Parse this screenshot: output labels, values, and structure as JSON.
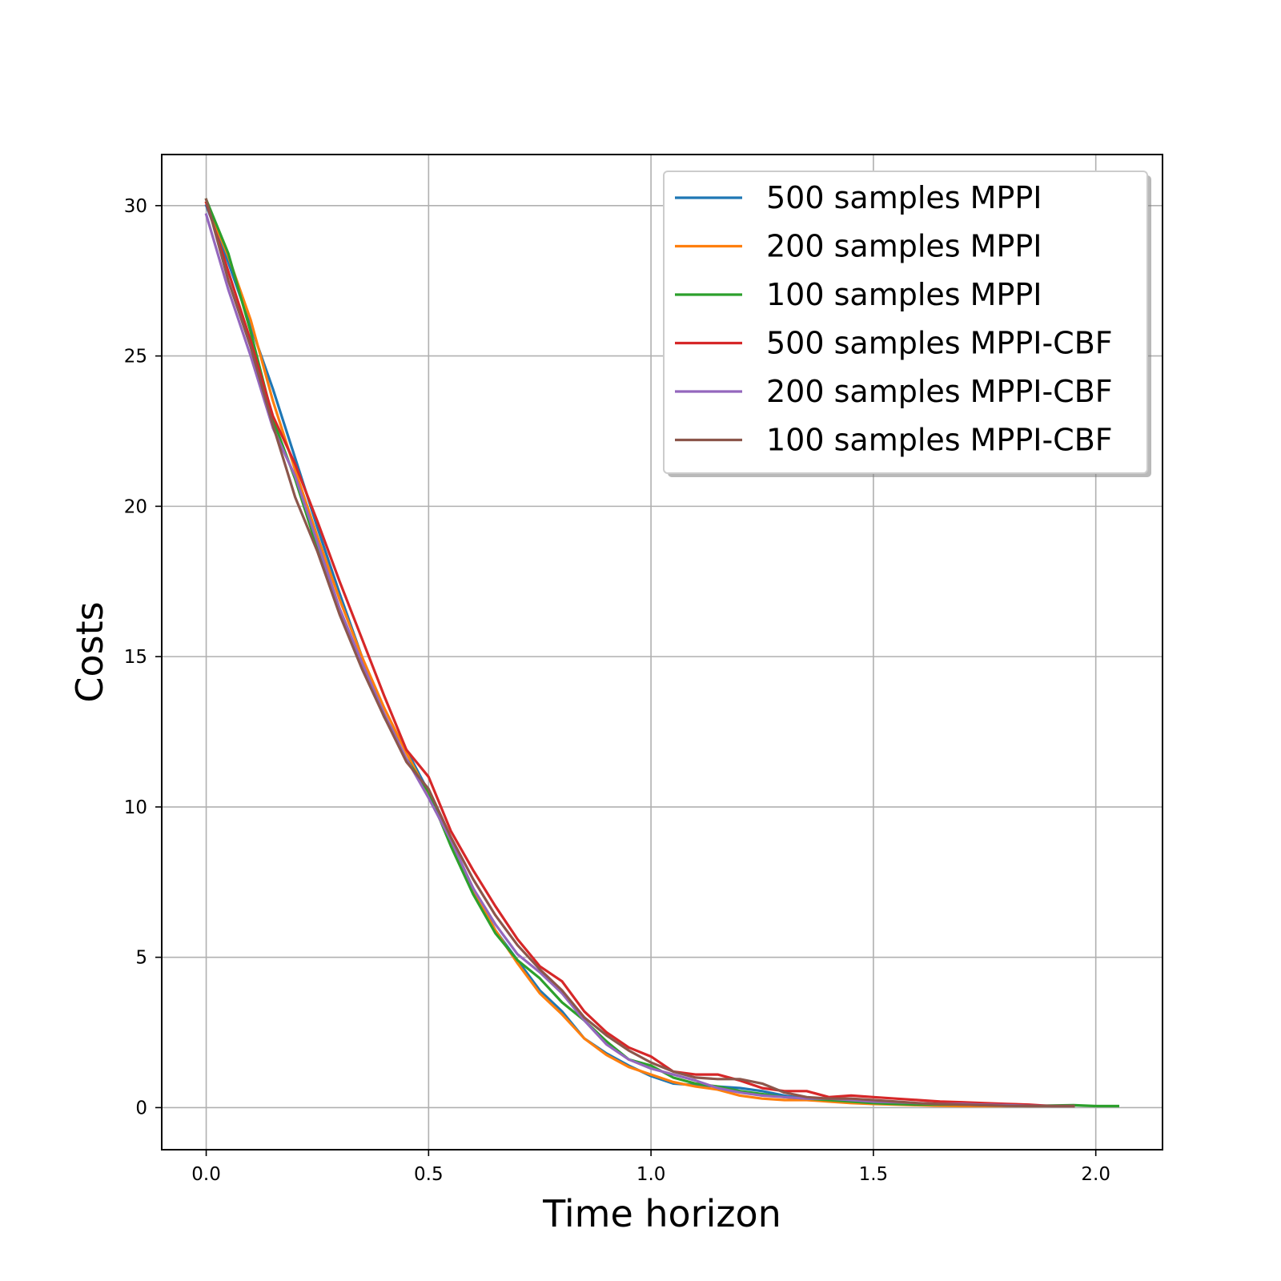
{
  "chart_data": {
    "type": "line",
    "title": "",
    "xlabel": "Time horizon",
    "ylabel": "Costs",
    "xlim": [
      -0.1,
      2.15
    ],
    "ylim": [
      -1.4,
      31.7
    ],
    "xticks": [
      0.0,
      0.5,
      1.0,
      1.5,
      2.0
    ],
    "xtick_labels": [
      "0.0",
      "0.5",
      "1.0",
      "1.5",
      "2.0"
    ],
    "yticks": [
      0,
      5,
      10,
      15,
      20,
      25,
      30
    ],
    "ytick_labels": [
      "0",
      "5",
      "10",
      "15",
      "20",
      "25",
      "30"
    ],
    "grid": true,
    "legend_position": "top-right",
    "series": [
      {
        "name": "500 samples MPPI",
        "color": "#1f77b4",
        "x": [
          0.0,
          0.05,
          0.1,
          0.15,
          0.2,
          0.25,
          0.3,
          0.35,
          0.4,
          0.45,
          0.5,
          0.55,
          0.6,
          0.65,
          0.7,
          0.75,
          0.8,
          0.85,
          0.9,
          0.95,
          1.0,
          1.05,
          1.1,
          1.15,
          1.2,
          1.25,
          1.3,
          1.35,
          1.4,
          1.45,
          1.5,
          1.55,
          1.6,
          1.65,
          1.7,
          1.75,
          1.8,
          1.85,
          1.9,
          1.95
        ],
        "y": [
          30.0,
          28.1,
          26.0,
          23.9,
          21.6,
          19.3,
          17.1,
          15.0,
          13.0,
          11.9,
          10.5,
          8.8,
          7.3,
          5.9,
          4.9,
          3.9,
          3.2,
          2.3,
          1.8,
          1.4,
          1.05,
          0.8,
          0.75,
          0.7,
          0.65,
          0.55,
          0.4,
          0.3,
          0.25,
          0.2,
          0.15,
          0.12,
          0.1,
          0.08,
          0.07,
          0.06,
          0.05,
          0.05,
          0.05,
          0.05
        ]
      },
      {
        "name": "200 samples MPPI",
        "color": "#ff7f0e",
        "x": [
          0.0,
          0.05,
          0.1,
          0.15,
          0.2,
          0.25,
          0.3,
          0.35,
          0.4,
          0.45,
          0.5,
          0.55,
          0.6,
          0.65,
          0.7,
          0.75,
          0.8,
          0.85,
          0.9,
          0.95,
          1.0,
          1.05,
          1.1,
          1.15,
          1.2,
          1.25,
          1.3,
          1.35,
          1.4,
          1.45,
          1.5,
          1.55,
          1.6,
          1.65,
          1.7,
          1.75,
          1.8,
          1.85,
          1.9,
          1.95
        ],
        "y": [
          30.1,
          28.3,
          26.2,
          23.5,
          21.2,
          19.0,
          16.9,
          15.0,
          13.3,
          11.8,
          10.4,
          8.8,
          7.2,
          5.9,
          4.8,
          3.8,
          3.1,
          2.3,
          1.75,
          1.35,
          1.1,
          0.85,
          0.7,
          0.6,
          0.4,
          0.3,
          0.25,
          0.25,
          0.2,
          0.15,
          0.12,
          0.1,
          0.08,
          0.06,
          0.05,
          0.05,
          0.05,
          0.05,
          0.05,
          0.05
        ]
      },
      {
        "name": "100 samples MPPI",
        "color": "#2ca02c",
        "x": [
          0.0,
          0.05,
          0.1,
          0.15,
          0.2,
          0.25,
          0.3,
          0.35,
          0.4,
          0.45,
          0.5,
          0.55,
          0.6,
          0.65,
          0.7,
          0.75,
          0.8,
          0.85,
          0.9,
          0.95,
          1.0,
          1.05,
          1.1,
          1.15,
          1.2,
          1.25,
          1.3,
          1.35,
          1.4,
          1.45,
          1.5,
          1.55,
          1.6,
          1.65,
          1.7,
          1.75,
          1.8,
          1.85,
          1.9,
          1.95,
          2.0,
          2.05
        ],
        "y": [
          30.2,
          28.4,
          25.8,
          22.9,
          20.9,
          18.6,
          16.5,
          14.7,
          13.0,
          11.6,
          10.5,
          8.7,
          7.1,
          5.8,
          4.9,
          4.3,
          3.5,
          2.9,
          2.2,
          1.6,
          1.4,
          1.0,
          0.8,
          0.7,
          0.55,
          0.45,
          0.35,
          0.3,
          0.25,
          0.2,
          0.15,
          0.12,
          0.1,
          0.1,
          0.1,
          0.08,
          0.07,
          0.06,
          0.07,
          0.08,
          0.05,
          0.05
        ]
      },
      {
        "name": "500 samples MPPI-CBF",
        "color": "#d62728",
        "x": [
          0.0,
          0.05,
          0.1,
          0.15,
          0.2,
          0.25,
          0.3,
          0.35,
          0.4,
          0.45,
          0.5,
          0.55,
          0.6,
          0.65,
          0.7,
          0.75,
          0.8,
          0.85,
          0.9,
          0.95,
          1.0,
          1.05,
          1.1,
          1.15,
          1.2,
          1.25,
          1.3,
          1.35,
          1.4,
          1.45,
          1.5,
          1.55,
          1.6,
          1.65,
          1.7,
          1.75,
          1.8,
          1.85,
          1.9,
          1.95
        ],
        "y": [
          30.1,
          27.8,
          25.5,
          23.0,
          21.4,
          19.5,
          17.5,
          15.6,
          13.7,
          11.9,
          11.0,
          9.2,
          7.9,
          6.7,
          5.6,
          4.7,
          4.2,
          3.2,
          2.5,
          2.0,
          1.7,
          1.2,
          1.1,
          1.1,
          0.9,
          0.65,
          0.55,
          0.55,
          0.35,
          0.4,
          0.35,
          0.3,
          0.25,
          0.2,
          0.18,
          0.15,
          0.12,
          0.1,
          0.05,
          0.05
        ]
      },
      {
        "name": "200 samples MPPI-CBF",
        "color": "#9467bd",
        "x": [
          0.0,
          0.05,
          0.1,
          0.15,
          0.2,
          0.25,
          0.3,
          0.35,
          0.4,
          0.45,
          0.5,
          0.55,
          0.6,
          0.65,
          0.7,
          0.75,
          0.8,
          0.85,
          0.9,
          0.95,
          1.0,
          1.05,
          1.1,
          1.15,
          1.2,
          1.25,
          1.3,
          1.35,
          1.4,
          1.45,
          1.5,
          1.55,
          1.6,
          1.65,
          1.7,
          1.75,
          1.8,
          1.85,
          1.9,
          1.95
        ],
        "y": [
          29.7,
          27.2,
          25.0,
          22.6,
          21.0,
          18.8,
          16.6,
          14.8,
          13.1,
          11.6,
          10.3,
          8.9,
          7.3,
          6.1,
          5.1,
          4.5,
          3.8,
          2.9,
          2.1,
          1.6,
          1.3,
          1.1,
          0.9,
          0.65,
          0.5,
          0.4,
          0.35,
          0.3,
          0.3,
          0.25,
          0.2,
          0.18,
          0.15,
          0.12,
          0.12,
          0.1,
          0.08,
          0.06,
          0.05,
          0.05
        ]
      },
      {
        "name": "100 samples MPPI-CBF",
        "color": "#8c564b",
        "x": [
          0.0,
          0.05,
          0.1,
          0.15,
          0.2,
          0.25,
          0.3,
          0.35,
          0.4,
          0.45,
          0.5,
          0.55,
          0.6,
          0.65,
          0.7,
          0.75,
          0.8,
          0.85,
          0.9,
          0.95,
          1.0,
          1.05,
          1.1,
          1.15,
          1.2,
          1.25,
          1.3,
          1.35,
          1.4,
          1.45,
          1.5,
          1.55,
          1.6,
          1.65,
          1.7,
          1.75,
          1.8,
          1.85,
          1.9,
          1.95
        ],
        "y": [
          30.2,
          27.5,
          25.3,
          22.7,
          20.3,
          18.5,
          16.4,
          14.6,
          13.0,
          11.5,
          10.6,
          9.0,
          7.6,
          6.4,
          5.4,
          4.6,
          3.9,
          3.0,
          2.4,
          1.9,
          1.5,
          1.2,
          1.0,
          0.95,
          0.95,
          0.8,
          0.5,
          0.35,
          0.3,
          0.3,
          0.25,
          0.2,
          0.15,
          0.12,
          0.1,
          0.08,
          0.06,
          0.05,
          0.05,
          0.05
        ]
      }
    ]
  }
}
